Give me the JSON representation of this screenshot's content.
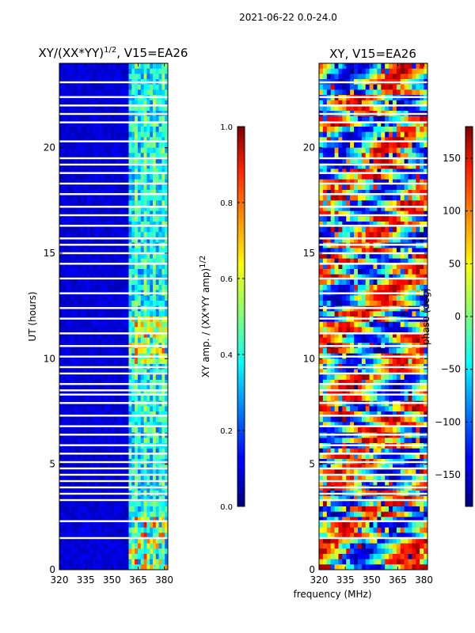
{
  "header": {
    "date_range": "2021-06-22 0.0-24.0"
  },
  "chart_data": [
    {
      "type": "heatmap",
      "title_main": "XY/(XX*YY)",
      "title_sup": "1/2",
      "title_tail": ", V15=EA26",
      "xlabel": "frequency (MHz)",
      "ylabel": "UT (hours)",
      "xlim": [
        320,
        382
      ],
      "ylim": [
        0,
        24
      ],
      "xticks": [
        "320",
        "335",
        "350",
        "365",
        "380"
      ],
      "yticks": [
        "0",
        "5",
        "10",
        "15",
        "20"
      ],
      "colorbar": {
        "label_main": "XY amp. / (XX*YY amp)",
        "label_sup": "1/2",
        "range": [
          0.0,
          1.0
        ],
        "ticks": [
          "0.0",
          "0.2",
          "0.4",
          "0.6",
          "0.8",
          "1.0"
        ],
        "colormap": "jet"
      },
      "summary": "Low amplitude (~0.0-0.1) below ~359 MHz; bright vertical bands (~0.3-0.9) between 359 and 382 MHz; peaks near 13.5 UT",
      "gap_rows_ut": [
        1.5,
        2.3,
        3.3,
        3.6,
        3.9,
        4.2,
        4.5,
        4.8,
        5.1,
        5.5,
        5.9,
        6.4,
        6.8,
        7.3,
        7.9,
        8.3,
        8.5,
        8.8,
        9.3,
        9.6,
        10.1,
        10.6,
        11.2,
        11.9,
        12.4,
        13.1,
        13.8,
        14.5,
        15.0,
        15.4,
        15.7,
        16.3,
        16.8,
        17.2,
        17.8,
        18.3,
        18.8,
        19.2,
        19.5,
        20.3,
        21.2,
        21.6,
        22.0,
        22.4,
        23.1
      ]
    },
    {
      "type": "heatmap",
      "title": "XY, V15=EA26",
      "xlabel": "frequency (MHz)",
      "ylabel": "",
      "xlim": [
        320,
        382
      ],
      "ylim": [
        0,
        24
      ],
      "xticks": [
        "320",
        "335",
        "350",
        "365",
        "380"
      ],
      "yticks": [
        "0",
        "5",
        "10",
        "15",
        "20"
      ],
      "colorbar": {
        "label": "phase (deg)",
        "range": [
          -180,
          180
        ],
        "ticks": [
          "−150",
          "−100",
          "−50",
          "0",
          "50",
          "100",
          "150"
        ],
        "tick_values": [
          -150,
          -100,
          -50,
          0,
          50,
          100,
          150
        ],
        "colormap": "jet"
      },
      "summary": "Phase varies across full −180 to 180 deg range with horizontal banding over time",
      "gap_rows_ut": [
        1.5,
        2.3,
        3.3,
        3.6,
        3.9,
        4.2,
        4.5,
        4.8,
        5.1,
        5.5,
        5.9,
        6.4,
        6.8,
        7.3,
        7.9,
        8.3,
        8.5,
        8.8,
        9.3,
        9.6,
        10.1,
        10.6,
        11.2,
        11.9,
        12.4,
        13.1,
        13.8,
        14.5,
        15.0,
        15.4,
        15.7,
        16.3,
        16.8,
        17.2,
        17.8,
        18.3,
        18.8,
        19.2,
        19.5,
        20.3,
        21.2,
        21.6,
        22.0,
        22.4,
        23.1
      ]
    }
  ]
}
